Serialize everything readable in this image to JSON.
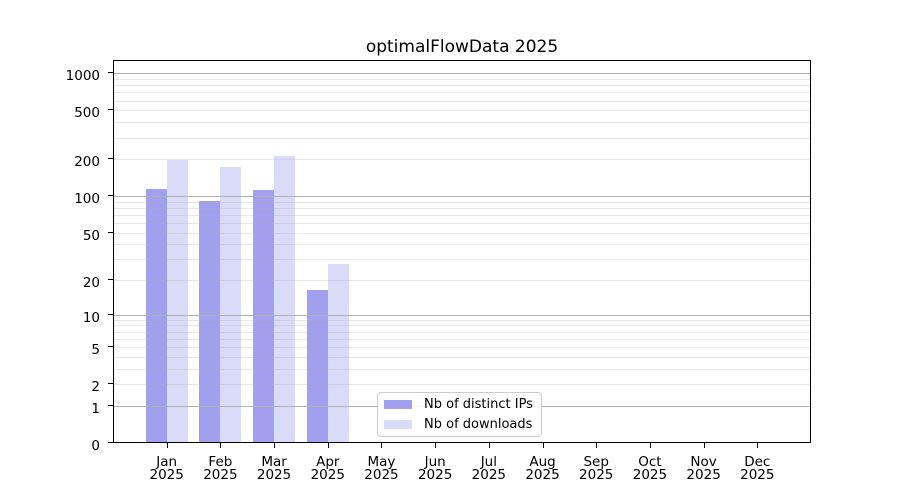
{
  "title": "optimalFlowData 2025",
  "chart_data": {
    "type": "bar",
    "categories": [
      "Jan",
      "Feb",
      "Mar",
      "Apr",
      "May",
      "Jun",
      "Jul",
      "Aug",
      "Sep",
      "Oct",
      "Nov",
      "Dec"
    ],
    "year_label": "2025",
    "series": [
      {
        "name": "Nb of distinct IPs",
        "color": "#a0a0ef",
        "values": [
          113,
          90,
          110,
          16,
          0,
          0,
          0,
          0,
          0,
          0,
          0,
          0
        ]
      },
      {
        "name": "Nb of downloads",
        "color": "#dadaf9",
        "values": [
          193,
          170,
          210,
          27,
          0,
          0,
          0,
          0,
          0,
          0,
          0,
          0
        ]
      }
    ],
    "yscale": "symlog",
    "ylim": [
      0,
      1281
    ],
    "yticks": [
      0,
      1,
      2,
      5,
      10,
      20,
      50,
      100,
      200,
      500,
      1000
    ],
    "grid": {
      "decade_lines": [
        1,
        10,
        100,
        1000
      ],
      "decade_color": "#b0b0b0",
      "minor_color": "rgba(176,176,176,0.3)"
    },
    "legend_position": "lower center"
  }
}
